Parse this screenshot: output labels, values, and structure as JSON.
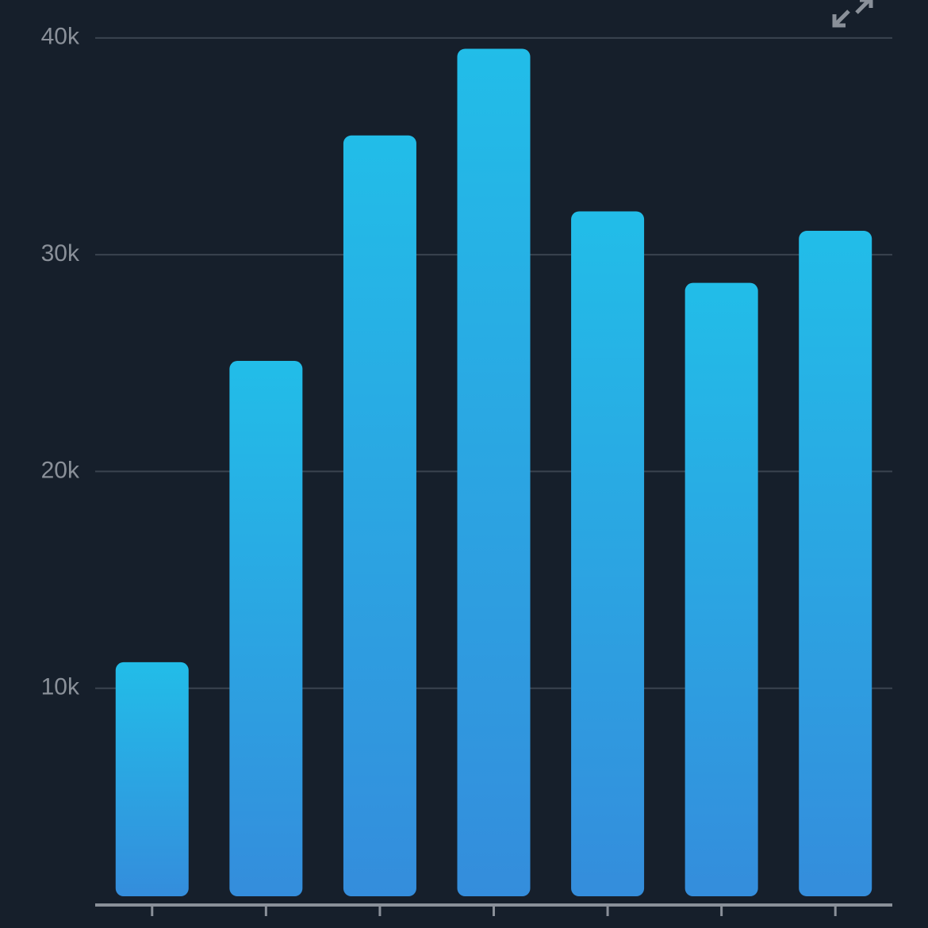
{
  "chart_data": {
    "type": "bar",
    "categories": [
      null,
      null,
      null,
      null,
      null,
      null,
      null
    ],
    "values": [
      11200,
      25100,
      35500,
      39500,
      32000,
      28700,
      31100
    ],
    "colors": [
      "#22bde8",
      "#348ddc"
    ],
    "ylim": [
      0,
      41750
    ],
    "yticks": [
      {
        "value": 10000,
        "label": "10k"
      },
      {
        "value": 20000,
        "label": "20k"
      },
      {
        "value": 30000,
        "label": "30k"
      },
      {
        "value": 40000,
        "label": "40k"
      }
    ],
    "grid": true
  }
}
